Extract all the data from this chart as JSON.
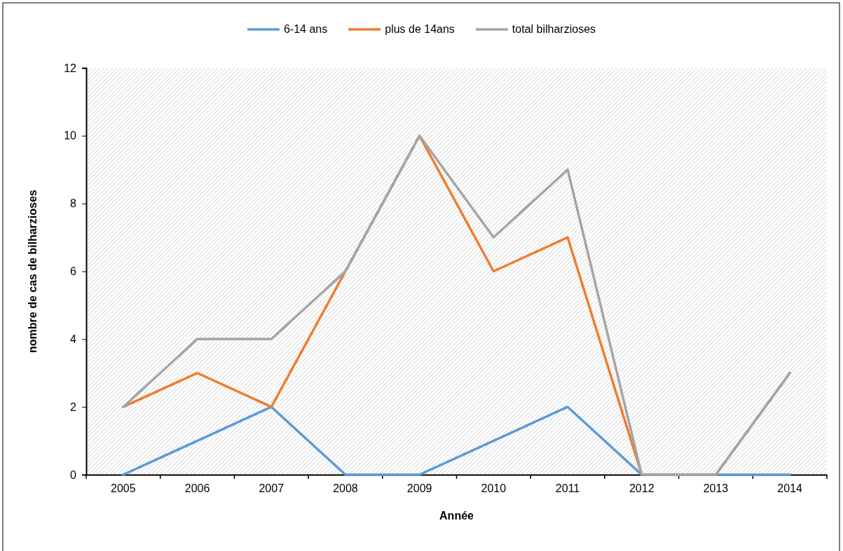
{
  "chart_data": {
    "type": "line",
    "xlabel": "Année",
    "ylabel": "nombre de cas de bilharzioses",
    "categories": [
      "2005",
      "2006",
      "2007",
      "2008",
      "2009",
      "2010",
      "2011",
      "2012",
      "2013",
      "2014"
    ],
    "series": [
      {
        "name": "6-14 ans",
        "color": "#5b9bd5",
        "values": [
          0,
          1,
          2,
          0,
          0,
          1,
          2,
          0,
          0,
          0
        ]
      },
      {
        "name": "plus de 14ans",
        "color": "#ed7d31",
        "values": [
          2,
          3,
          2,
          6,
          10,
          6,
          7,
          0,
          0,
          3
        ]
      },
      {
        "name": "total bilharzioses",
        "color": "#a5a5a5",
        "values": [
          2,
          4,
          4,
          6,
          10,
          7,
          9,
          0,
          0,
          3
        ]
      }
    ],
    "ylim": [
      0,
      12
    ],
    "yticks": [
      0,
      2,
      4,
      6,
      8,
      10,
      12
    ],
    "grid": false,
    "legend": "top",
    "marker": "none",
    "line_style": "solid"
  }
}
